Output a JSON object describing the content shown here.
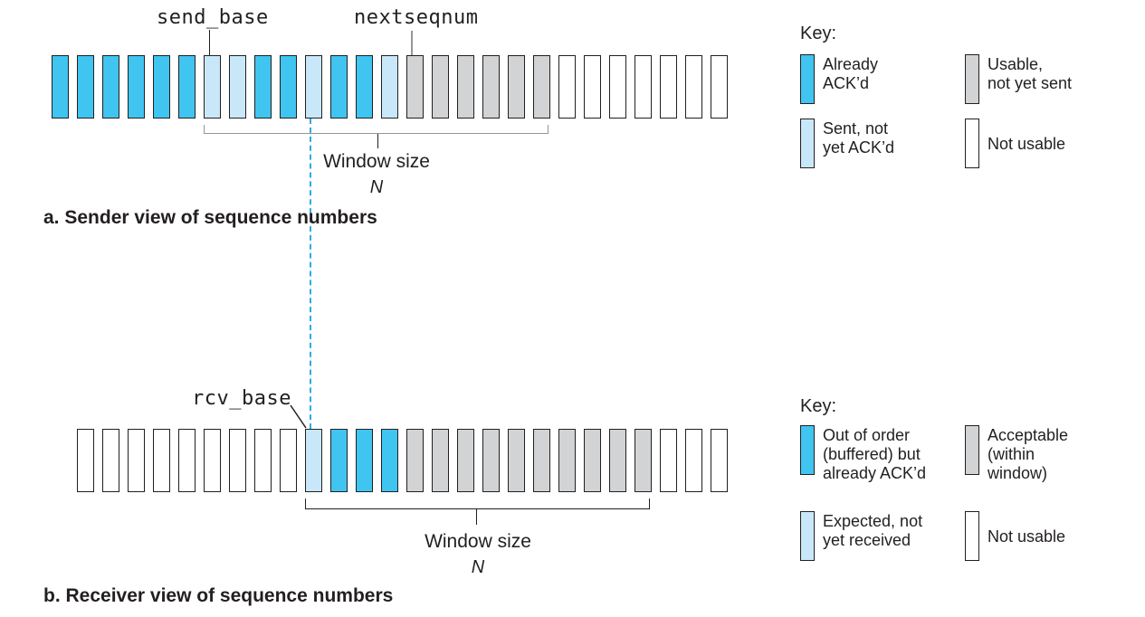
{
  "palette": {
    "dark_blue": "#3FC5F0",
    "light_blue": "#C8E8F9",
    "gray": "#D1D3D4",
    "white": "#FFFFFF",
    "box_border": "#231F20",
    "bracket_gray": "#949699",
    "bracket_black": "#231F20",
    "dashed_line": "#2BACE2",
    "text": "#231F20"
  },
  "sender": {
    "send_base_label": "send_base",
    "nextseqnum_label": "nextseqnum",
    "window_size_label": "Window size",
    "window_size_n": "N",
    "caption": "a. Sender view of sequence numbers",
    "boxes": [
      "dark",
      "dark",
      "dark",
      "dark",
      "dark",
      "dark",
      "light",
      "light",
      "dark",
      "dark",
      "light",
      "dark",
      "dark",
      "light",
      "gray",
      "gray",
      "gray",
      "gray",
      "gray",
      "gray",
      "white",
      "white",
      "white",
      "white",
      "white",
      "white",
      "white"
    ],
    "key": {
      "title": "Key:",
      "items": [
        {
          "color": "dark",
          "lines": [
            "Already",
            "ACK’d"
          ]
        },
        {
          "color": "gray",
          "lines": [
            "Usable,",
            "not yet sent"
          ]
        },
        {
          "color": "light",
          "lines": [
            "Sent, not",
            "yet ACK’d"
          ]
        },
        {
          "color": "white",
          "lines": [
            "Not usable"
          ]
        }
      ]
    }
  },
  "receiver": {
    "rcv_base_label": "rcv_base",
    "window_size_label": "Window size",
    "window_size_n": "N",
    "caption": "b. Receiver view of sequence numbers",
    "boxes": [
      "white",
      "white",
      "white",
      "white",
      "white",
      "white",
      "white",
      "white",
      "white",
      "light",
      "dark",
      "dark",
      "dark",
      "gray",
      "gray",
      "gray",
      "gray",
      "gray",
      "gray",
      "gray",
      "gray",
      "gray",
      "gray",
      "white",
      "white",
      "white"
    ],
    "key": {
      "title": "Key:",
      "items": [
        {
          "color": "dark",
          "lines": [
            "Out of order",
            "(buffered) but",
            "already ACK’d"
          ]
        },
        {
          "color": "gray",
          "lines": [
            "Acceptable",
            "(within",
            "window)"
          ]
        },
        {
          "color": "light",
          "lines": [
            "Expected, not",
            "yet received"
          ]
        },
        {
          "color": "white",
          "lines": [
            "Not usable"
          ]
        }
      ]
    }
  }
}
